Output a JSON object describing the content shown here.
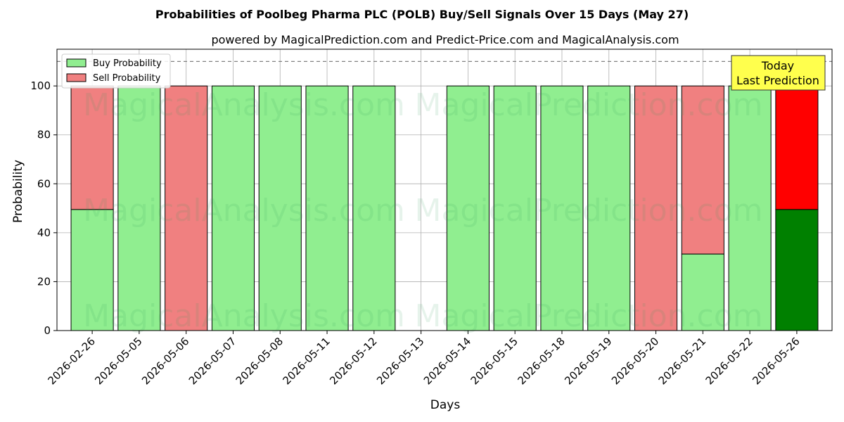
{
  "chart_data": {
    "type": "bar",
    "title": "Probabilities of Poolbeg Pharma PLC (POLB) Buy/Sell Signals Over 15 Days (May 27)",
    "subtitle": "powered by MagicalPrediction.com and Predict-Price.com and MagicalAnalysis.com",
    "xlabel": "Days",
    "ylabel": "Probability",
    "ylim": [
      0,
      115
    ],
    "yticks": [
      0,
      20,
      40,
      60,
      80,
      100
    ],
    "reference_line": 110,
    "grid": true,
    "legend_position": "top-left",
    "stacked": true,
    "categories": [
      "2026-02-26",
      "2026-05-05",
      "2026-05-06",
      "2026-05-07",
      "2026-05-08",
      "2026-05-11",
      "2026-05-12",
      "2026-05-13",
      "2026-05-14",
      "2026-05-15",
      "2026-05-18",
      "2026-05-19",
      "2026-05-20",
      "2026-05-21",
      "2026-05-22",
      "2026-05-26"
    ],
    "series": [
      {
        "name": "Buy Probability",
        "color": "#90ee90",
        "values": [
          49.5,
          100,
          0,
          100,
          100,
          100,
          100,
          0,
          100,
          100,
          100,
          100,
          0,
          31.3,
          100,
          49.5
        ]
      },
      {
        "name": "Sell Probability",
        "color": "#f08080",
        "values": [
          50.5,
          0,
          100,
          0,
          0,
          0,
          0,
          0,
          0,
          0,
          0,
          0,
          100,
          68.7,
          0,
          50.5
        ]
      }
    ],
    "highlight": {
      "category": "2026-05-26",
      "buy_color": "#008000",
      "sell_color": "#ff0000"
    },
    "annotation": {
      "lines": [
        "Today",
        "Last Prediction"
      ],
      "background": "#ffff4d"
    },
    "watermarks": [
      "MagicalAnalysis.com",
      "MagicalPrediction.com"
    ]
  }
}
